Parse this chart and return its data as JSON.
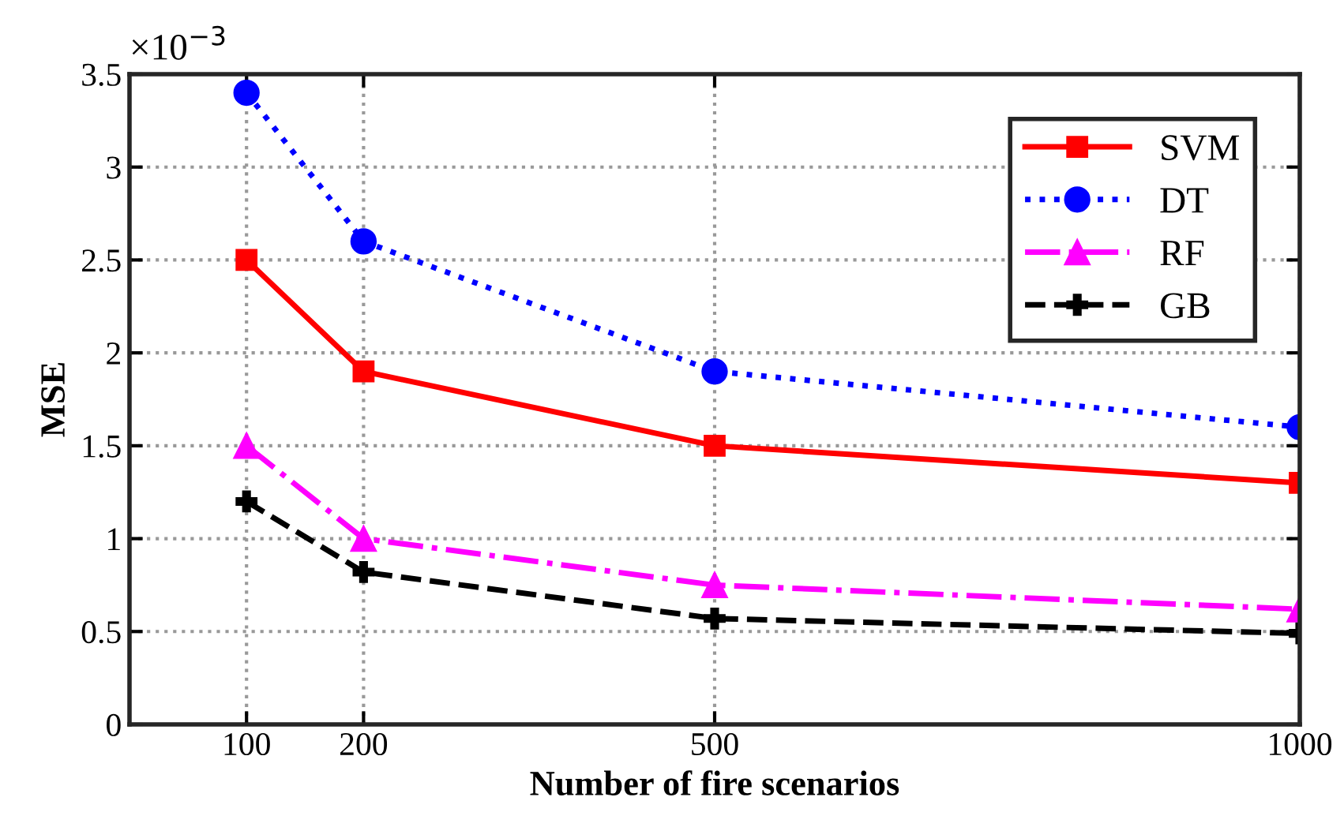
{
  "chart_data": {
    "type": "line",
    "xlabel": "Number of fire scenarios",
    "ylabel": "MSE",
    "annotations": [
      "×10$^{−3}$"
    ],
    "x": [
      100,
      200,
      500,
      1000
    ],
    "xlim": [
      0,
      1000
    ],
    "xticks": [
      100,
      200,
      500,
      1000
    ],
    "ylim": [
      0,
      3.5
    ],
    "yticks": [
      0,
      {
        "value": 0.5,
        "label": "0.5"
      },
      1,
      {
        "value": 1.5,
        "label": "1.5"
      },
      2,
      {
        "value": 2.5,
        "label": "2.5"
      },
      3,
      {
        "value": 3.5,
        "label": "3.5"
      }
    ],
    "grid": true,
    "legend": "top right",
    "series": [
      {
        "name": "SVM",
        "color": "#ff0000",
        "values": [
          2.5,
          1.9,
          1.5,
          1.3
        ],
        "marker": "square",
        "line_style": "solid"
      },
      {
        "name": "DT",
        "color": "#0000ff",
        "values": [
          3.4,
          2.6,
          1.9,
          1.6
        ],
        "marker": "circle",
        "line_style": "dotted"
      },
      {
        "name": "RF",
        "color": "#ff00ff",
        "values": [
          1.5,
          1.0,
          0.75,
          0.62
        ],
        "marker": "triangle",
        "line_style": "dashdot"
      },
      {
        "name": "GB",
        "color": "#000000",
        "values": [
          1.2,
          0.82,
          0.57,
          0.49
        ],
        "marker": "cross",
        "line_style": "dashed"
      }
    ]
  }
}
